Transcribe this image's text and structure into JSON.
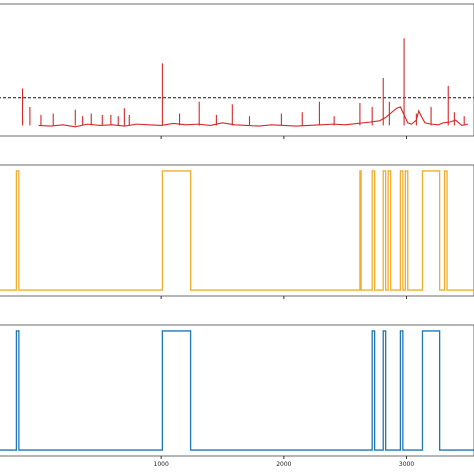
{
  "chart_data": [
    {
      "type": "line",
      "panel": "top",
      "series": [
        {
          "color": "#d62728",
          "baseline": [
            [
              0,
              0.8
            ],
            [
              100,
              0.75
            ],
            [
              200,
              0.85
            ],
            [
              300,
              0.7
            ],
            [
              400,
              0.9
            ],
            [
              500,
              0.8
            ],
            [
              600,
              0.85
            ],
            [
              700,
              0.75
            ],
            [
              800,
              0.9
            ],
            [
              900,
              0.85
            ],
            [
              1000,
              0.8
            ],
            [
              1100,
              0.95
            ],
            [
              1200,
              0.85
            ],
            [
              1300,
              0.9
            ],
            [
              1400,
              0.8
            ],
            [
              1500,
              1.0
            ],
            [
              1600,
              0.85
            ],
            [
              1700,
              0.8
            ],
            [
              1800,
              0.75
            ],
            [
              1900,
              0.85
            ],
            [
              2000,
              0.8
            ],
            [
              2100,
              0.75
            ],
            [
              2200,
              0.8
            ],
            [
              2300,
              0.85
            ],
            [
              2400,
              0.9
            ],
            [
              2500,
              0.85
            ],
            [
              2600,
              0.95
            ],
            [
              2700,
              1.05
            ],
            [
              2780,
              1.15
            ],
            [
              2830,
              1.4
            ],
            [
              2880,
              1.8
            ],
            [
              2920,
              2.1
            ],
            [
              2950,
              2.2
            ],
            [
              2980,
              1.6
            ],
            [
              3010,
              1.0
            ],
            [
              3040,
              0.9
            ],
            [
              3080,
              1.2
            ],
            [
              3100,
              1.9
            ],
            [
              3120,
              1.5
            ],
            [
              3150,
              1.0
            ],
            [
              3200,
              0.9
            ],
            [
              3260,
              0.85
            ],
            [
              3300,
              1.0
            ],
            [
              3350,
              1.05
            ],
            [
              3400,
              1.2
            ],
            [
              3450,
              0.8
            ],
            [
              3500,
              0.9
            ]
          ],
          "spikes": [
            [
              -130,
              3.6
            ],
            [
              -70,
              2.2
            ],
            [
              20,
              1.6
            ],
            [
              120,
              1.7
            ],
            [
              300,
              2.0
            ],
            [
              360,
              1.5
            ],
            [
              430,
              1.7
            ],
            [
              520,
              1.6
            ],
            [
              590,
              1.6
            ],
            [
              650,
              1.5
            ],
            [
              700,
              2.1
            ],
            [
              740,
              1.6
            ],
            [
              1010,
              5.5
            ],
            [
              1150,
              1.7
            ],
            [
              1310,
              2.6
            ],
            [
              1450,
              1.6
            ],
            [
              1580,
              2.4
            ],
            [
              1720,
              1.5
            ],
            [
              1980,
              1.7
            ],
            [
              2150,
              1.8
            ],
            [
              2290,
              2.6
            ],
            [
              2410,
              1.5
            ],
            [
              2620,
              2.5
            ],
            [
              2720,
              2.2
            ],
            [
              2810,
              4.4
            ],
            [
              2860,
              2.6
            ],
            [
              2980,
              7.4
            ],
            [
              3080,
              1.7
            ],
            [
              3200,
              2.2
            ],
            [
              3340,
              3.8
            ],
            [
              3390,
              1.8
            ],
            [
              3470,
              1.5
            ]
          ]
        }
      ],
      "threshold": 2.9,
      "xlim": [
        -330,
        3550
      ],
      "ylim": [
        0,
        10
      ]
    },
    {
      "type": "line",
      "panel": "middle",
      "series": [
        {
          "color": "#f0ad2e",
          "intervals": [
            [
              -180,
              -160
            ],
            [
              1010,
              1240
            ],
            [
              2620,
              2630
            ],
            [
              2720,
              2740
            ],
            [
              2810,
              2830
            ],
            [
              2850,
              2870
            ],
            [
              2950,
              2970
            ],
            [
              2990,
              3010
            ],
            [
              3130,
              3270
            ],
            [
              3310,
              3330
            ]
          ]
        }
      ],
      "xlim": [
        -330,
        3550
      ],
      "ylim": [
        -0.05,
        1.05
      ]
    },
    {
      "type": "line",
      "panel": "bottom",
      "series": [
        {
          "color": "#1f77b4",
          "intervals": [
            [
              -180,
              -160
            ],
            [
              1010,
              1240
            ],
            [
              2720,
              2740
            ],
            [
              2810,
              2830
            ],
            [
              2950,
              2970
            ],
            [
              3130,
              3270
            ]
          ]
        }
      ],
      "xlim": [
        -330,
        3550
      ],
      "ylim": [
        -0.05,
        1.05
      ],
      "x_ticks": [
        {
          "value": 1000,
          "label": "1000"
        },
        {
          "value": 2000,
          "label": "2000"
        },
        {
          "value": 3000,
          "label": "3000"
        }
      ]
    }
  ]
}
